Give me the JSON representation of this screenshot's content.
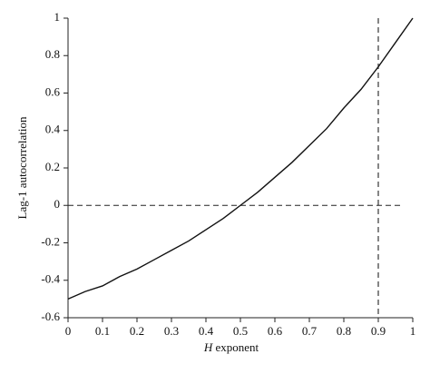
{
  "chart_data": {
    "type": "line",
    "y_label": "Lag-1 autocorrelation",
    "x_label": {
      "var": "H",
      "text": "exponent"
    },
    "x": [
      0,
      0.05,
      0.1,
      0.15,
      0.2,
      0.25,
      0.3,
      0.35,
      0.4,
      0.45,
      0.5,
      0.55,
      0.6,
      0.65,
      0.7,
      0.75,
      0.8,
      0.85,
      0.9,
      0.95,
      1
    ],
    "series": [
      {
        "color": "#111111",
        "values": [
          -0.5,
          -0.46,
          -0.43,
          -0.38,
          -0.34,
          -0.29,
          -0.24,
          -0.19,
          -0.13,
          -0.07,
          0,
          0.07,
          0.15,
          0.23,
          0.32,
          0.41,
          0.52,
          0.62,
          0.74,
          0.87,
          1
        ]
      }
    ],
    "xlim": [
      0,
      1
    ],
    "ylim": [
      -0.6,
      1
    ],
    "xticks": [
      0,
      0.1,
      0.2,
      0.3,
      0.4,
      0.5,
      0.6,
      0.7,
      0.8,
      0.9,
      1
    ],
    "yticks": [
      -0.6,
      -0.4,
      -0.2,
      0,
      0.2,
      0.4,
      0.6,
      0.8,
      1
    ],
    "reference_lines": {
      "y": 0,
      "x": 0.9
    },
    "grid": false
  }
}
